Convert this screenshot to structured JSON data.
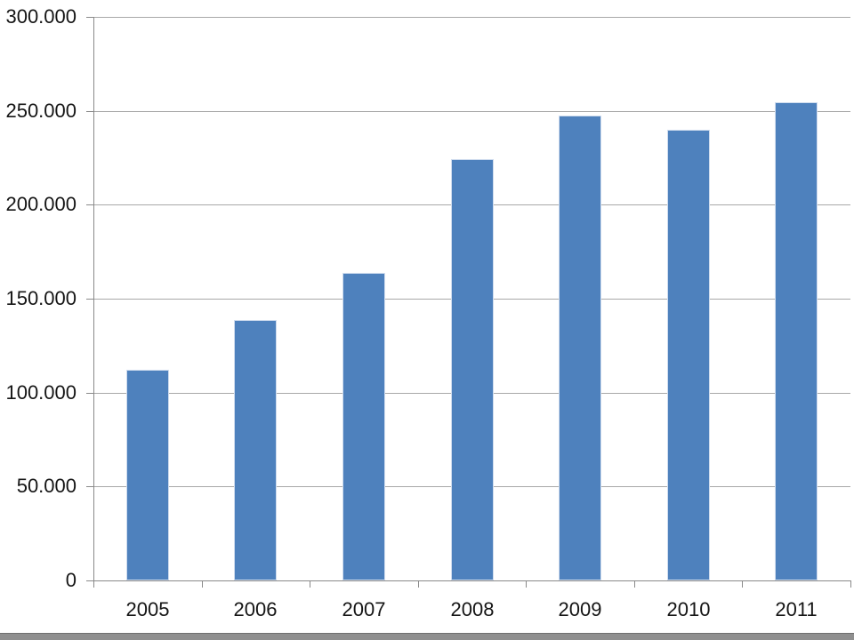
{
  "chart_data": {
    "type": "bar",
    "title": "",
    "xlabel": "",
    "ylabel": "",
    "categories": [
      "2005",
      "2006",
      "2007",
      "2008",
      "2009",
      "2010",
      "2011"
    ],
    "values": [
      112000,
      138500,
      163500,
      224500,
      247500,
      240000,
      254500
    ],
    "ylim": [
      0,
      300000
    ],
    "y_ticks": [
      0,
      50000,
      100000,
      150000,
      200000,
      250000,
      300000
    ],
    "y_tick_labels": [
      "0",
      "50.000",
      "100.000",
      "150.000",
      "200.000",
      "250.000",
      "300.000"
    ],
    "grid": true,
    "legend": false,
    "bar_color": "#4E81BD",
    "bar_edge_color": "#cfdcee",
    "gridline_color": "#a8a8a8",
    "axis_color": "#898989",
    "label_color": "#151515",
    "background_color": "#ffffff",
    "bottom_rule_color": "#8f8f8f"
  }
}
